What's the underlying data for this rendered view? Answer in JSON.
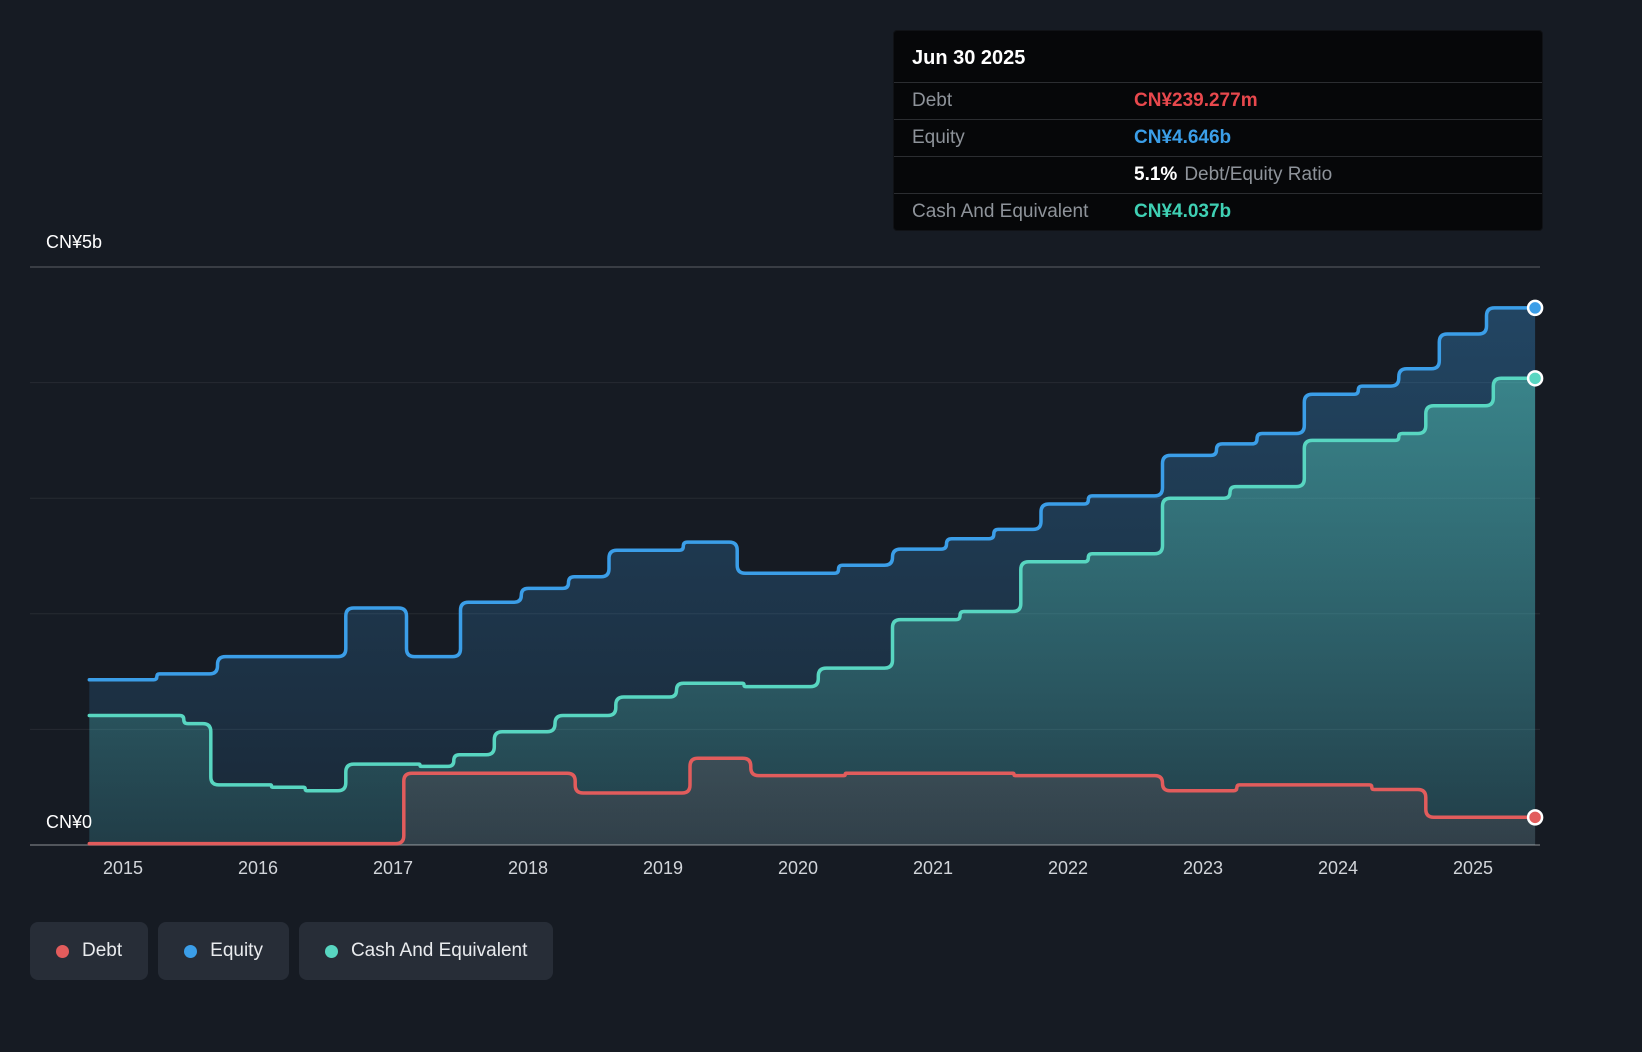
{
  "tooltip": {
    "date": "Jun 30 2025",
    "debt_label": "Debt",
    "debt_value": "CN¥239.277m",
    "equity_label": "Equity",
    "equity_value": "CN¥4.646b",
    "ratio_value": "5.1%",
    "ratio_label": "Debt/Equity Ratio",
    "cash_label": "Cash And Equivalent",
    "cash_value": "CN¥4.037b"
  },
  "colors": {
    "debt_value": "#e8484d",
    "equity_value": "#3b9ee8",
    "cash_value": "#3fd0b4"
  },
  "chart_data": {
    "type": "area",
    "subtype": "stepped-area-lines",
    "unit": "CN¥ billions",
    "grid": true,
    "legend_position": "bottom-left",
    "y_axis": {
      "label_top": "CN¥5b",
      "label_bottom": "CN¥0",
      "min": 0,
      "max": 5,
      "gridlines": [
        0,
        1,
        2,
        3,
        4,
        5
      ]
    },
    "x_axis": {
      "min": 2014.75,
      "max": 2025.5,
      "ticks": [
        2015,
        2016,
        2017,
        2018,
        2019,
        2020,
        2021,
        2022,
        2023,
        2024,
        2025
      ]
    },
    "series": [
      {
        "name": "Debt",
        "color": "#e25c5c",
        "final_label": "CN¥239.277m",
        "points": [
          [
            2014.75,
            0.012
          ],
          [
            2017.08,
            0.62
          ],
          [
            2018.35,
            0.45
          ],
          [
            2019.2,
            0.75
          ],
          [
            2019.65,
            0.6
          ],
          [
            2020.35,
            0.62
          ],
          [
            2021.6,
            0.6
          ],
          [
            2022.7,
            0.47
          ],
          [
            2023.25,
            0.52
          ],
          [
            2024.25,
            0.48
          ],
          [
            2024.65,
            0.24
          ],
          [
            2025.46,
            0.239
          ]
        ]
      },
      {
        "name": "Equity",
        "color": "#3b9ee8",
        "final_label": "CN¥4.646b",
        "points": [
          [
            2014.75,
            1.43
          ],
          [
            2015.25,
            1.48
          ],
          [
            2015.7,
            1.63
          ],
          [
            2016.65,
            2.05
          ],
          [
            2017.1,
            1.63
          ],
          [
            2017.5,
            2.1
          ],
          [
            2017.95,
            2.22
          ],
          [
            2018.3,
            2.32
          ],
          [
            2018.6,
            2.55
          ],
          [
            2019.15,
            2.62
          ],
          [
            2019.55,
            2.35
          ],
          [
            2020.3,
            2.42
          ],
          [
            2020.7,
            2.56
          ],
          [
            2021.1,
            2.65
          ],
          [
            2021.45,
            2.73
          ],
          [
            2021.8,
            2.95
          ],
          [
            2022.15,
            3.02
          ],
          [
            2022.7,
            3.37
          ],
          [
            2023.1,
            3.47
          ],
          [
            2023.4,
            3.56
          ],
          [
            2023.75,
            3.9
          ],
          [
            2024.15,
            3.97
          ],
          [
            2024.45,
            4.12
          ],
          [
            2024.75,
            4.42
          ],
          [
            2025.1,
            4.646
          ],
          [
            2025.46,
            4.646
          ]
        ]
      },
      {
        "name": "Cash And Equivalent",
        "color": "#58d6c1",
        "final_label": "CN¥4.037b",
        "points": [
          [
            2014.75,
            1.12
          ],
          [
            2015.45,
            1.05
          ],
          [
            2015.65,
            0.52
          ],
          [
            2016.1,
            0.5
          ],
          [
            2016.35,
            0.47
          ],
          [
            2016.65,
            0.7
          ],
          [
            2017.2,
            0.68
          ],
          [
            2017.45,
            0.78
          ],
          [
            2017.75,
            0.98
          ],
          [
            2018.2,
            1.12
          ],
          [
            2018.65,
            1.28
          ],
          [
            2019.1,
            1.4
          ],
          [
            2019.6,
            1.37
          ],
          [
            2020.15,
            1.53
          ],
          [
            2020.7,
            1.95
          ],
          [
            2021.2,
            2.02
          ],
          [
            2021.65,
            2.45
          ],
          [
            2022.15,
            2.52
          ],
          [
            2022.7,
            3.0
          ],
          [
            2023.2,
            3.1
          ],
          [
            2023.75,
            3.5
          ],
          [
            2024.45,
            3.56
          ],
          [
            2024.65,
            3.8
          ],
          [
            2025.15,
            4.037
          ],
          [
            2025.46,
            4.037
          ]
        ]
      }
    ]
  }
}
